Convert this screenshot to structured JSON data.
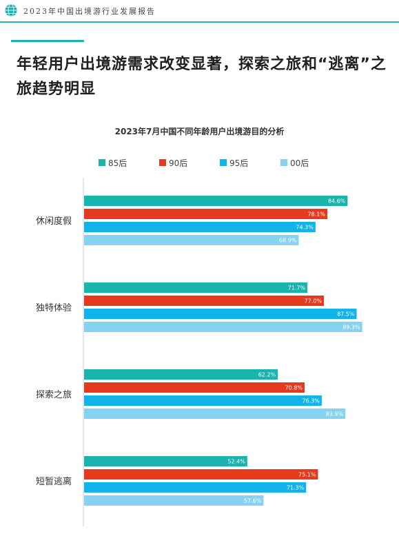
{
  "header": {
    "text": "2023年中国出境游行业发展报告",
    "icon": "globe-icon"
  },
  "headline": "年轻用户出境游需求改变显著，探索之旅和“逃离”之旅趋势明显",
  "colors": {
    "accent": "#21b3b3"
  },
  "chart_data": {
    "type": "bar",
    "orientation": "horizontal",
    "title": "2023年7月中国不同年龄用户出境游目的分析",
    "categories": [
      "休闲度假",
      "独特体验",
      "探索之旅",
      "短暂逃离"
    ],
    "series": [
      {
        "name": "85后",
        "color": "#1ab3ad",
        "values": [
          84.6,
          71.7,
          62.2,
          52.4
        ],
        "labels": [
          "84.6%",
          "71.7%",
          "62.2%",
          "52.4%"
        ]
      },
      {
        "name": "90后",
        "color": "#e63a1e",
        "values": [
          78.1,
          77.0,
          70.8,
          75.1
        ],
        "labels": [
          "78.1%",
          "77.0%",
          "70.8%",
          "75.1%"
        ]
      },
      {
        "name": "95后",
        "color": "#12b3ea",
        "values": [
          74.3,
          87.5,
          76.3,
          71.3
        ],
        "labels": [
          "74.3%",
          "87.5%",
          "76.3%",
          "71.3%"
        ]
      },
      {
        "name": "00后",
        "color": "#86d3f1",
        "values": [
          68.9,
          89.3,
          83.9,
          57.6
        ],
        "labels": [
          "68.9%",
          "89.3%",
          "83.9%",
          "57.6%"
        ]
      }
    ],
    "xlim": [
      0,
      100
    ],
    "grid": false,
    "legend_position": "top"
  }
}
